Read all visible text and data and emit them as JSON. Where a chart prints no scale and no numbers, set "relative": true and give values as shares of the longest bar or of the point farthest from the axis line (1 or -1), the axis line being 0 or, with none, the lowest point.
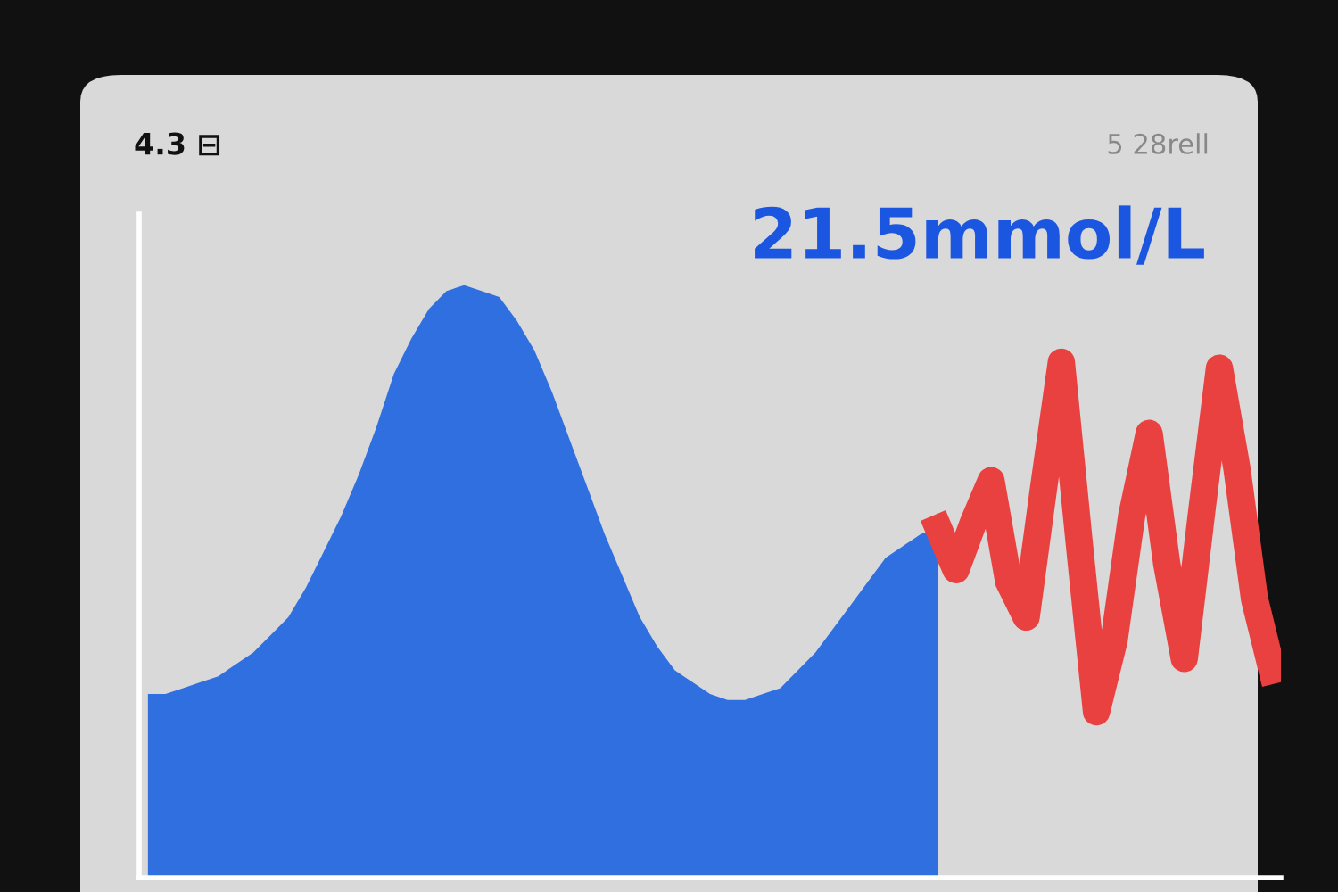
{
  "chart_data": {
    "type": "area",
    "title": "4.3 ⊟",
    "subtitle": "5 28rell",
    "annotations": [
      "21.5mmol/L"
    ],
    "relative": true,
    "grid": false,
    "legend": false,
    "categories": [
      null,
      null,
      null,
      null,
      null,
      null,
      null,
      null,
      null,
      null,
      null,
      null,
      null,
      null,
      null,
      null,
      null,
      null,
      null,
      null,
      null,
      null,
      null,
      null,
      null,
      null,
      null,
      null,
      null,
      null,
      null,
      null,
      null,
      null,
      null,
      null,
      null,
      null,
      null,
      null,
      null,
      null,
      null,
      null,
      null,
      null,
      null,
      null,
      null,
      null,
      null,
      null,
      null,
      null,
      null,
      null,
      null,
      null,
      null,
      null,
      null,
      null,
      null,
      null,
      null
    ],
    "series": [
      {
        "color": "#2f6fe0",
        "values": [
          0.31,
          0.31,
          0.32,
          0.33,
          0.34,
          0.36,
          0.38,
          0.41,
          0.44,
          0.49,
          0.55,
          0.61,
          0.68,
          0.76,
          0.85,
          0.91,
          0.96,
          0.99,
          1.0,
          0.99,
          0.98,
          0.94,
          0.89,
          0.82,
          0.74,
          0.66,
          0.58,
          0.51,
          0.44,
          0.39,
          0.35,
          0.33,
          0.31,
          0.3,
          0.3,
          0.31,
          0.32,
          0.35,
          0.38,
          0.42,
          0.46,
          0.5,
          0.54,
          0.56,
          0.58,
          0.59,
          null,
          null,
          null,
          null,
          null,
          null,
          null,
          null,
          null,
          null,
          null,
          null,
          null,
          null,
          null,
          null,
          null,
          null,
          null
        ]
      },
      {
        "type": "line",
        "color": "#e8413f",
        "values": [
          null,
          null,
          null,
          null,
          null,
          null,
          null,
          null,
          null,
          null,
          null,
          null,
          null,
          null,
          null,
          null,
          null,
          null,
          null,
          null,
          null,
          null,
          null,
          null,
          null,
          null,
          null,
          null,
          null,
          null,
          null,
          null,
          null,
          null,
          null,
          null,
          null,
          null,
          null,
          null,
          null,
          null,
          null,
          null,
          null,
          0.59,
          0.52,
          0.6,
          0.67,
          0.5,
          0.44,
          0.66,
          0.87,
          0.57,
          0.28,
          0.4,
          0.61,
          0.75,
          0.53,
          0.37,
          0.62,
          0.86,
          0.69,
          0.47,
          0.35
        ]
      }
    ]
  }
}
